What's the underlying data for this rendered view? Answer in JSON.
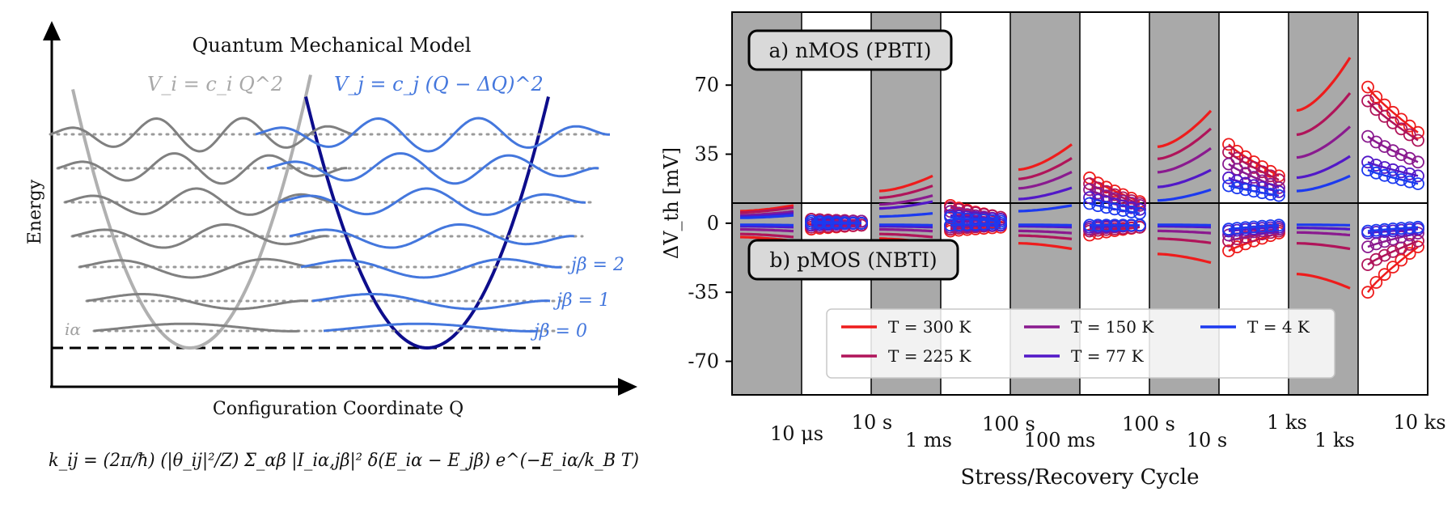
{
  "left_panel": {
    "title": "Quantum Mechanical Model",
    "y_label": "Energy",
    "x_label": "Configuration Coordinate Q",
    "potential_i": "V_i = c_i Q^2",
    "potential_j": "V_j = c_j (Q − ΔQ)^2",
    "state_label_i": "iα",
    "state_labels_j": [
      "jβ = 0",
      "jβ = 1",
      "jβ = 2"
    ],
    "rate_formula": "k_ij = (2π/ħ) (|θ_ij|²/Z) Σ_αβ |I_iα,jβ|² δ(E_iα − E_jβ) e^(−E_iα/k_B T)",
    "colors": {
      "well_i": "#b0b0b0",
      "wave_i": "#808080",
      "well_j": "#0d0d8c",
      "wave_j": "#4477dd"
    }
  },
  "chart_data": {
    "type": "line",
    "title": "",
    "xlabel": "Stress/Recovery Cycle",
    "ylabel": "ΔV_th [mV]",
    "ylim": [
      -87,
      107
    ],
    "yticks": [
      70,
      35,
      0,
      -35,
      -70
    ],
    "panel_labels": [
      "a) nMOS (PBTI)",
      "b) pMOS (NBTI)"
    ],
    "cycle_labels": [
      "10 μs",
      "10 s",
      "1 ms",
      "100 s",
      "100 ms",
      "100 s",
      "10 s",
      "1 ks",
      "1 ks",
      "10 ks"
    ],
    "phases": [
      "stress",
      "recovery",
      "stress",
      "recovery",
      "stress",
      "recovery",
      "stress",
      "recovery",
      "stress",
      "recovery"
    ],
    "legend_location": "lower-center",
    "series": [
      {
        "name": "T = 300 K",
        "color": "#ee1c1c",
        "nmos_stress_end": [
          9,
          24,
          40,
          57,
          84
        ],
        "nmos_recovery": [
          [
            2,
            1
          ],
          [
            9,
            3
          ],
          [
            23,
            11
          ],
          [
            40,
            24
          ],
          [
            69,
            46
          ]
        ],
        "pmos_stress_end": [
          -9,
          -10,
          -13,
          -20,
          -33
        ],
        "pmos_recovery": [
          [
            -3,
            -1
          ],
          [
            -4,
            -2
          ],
          [
            -6,
            -2
          ],
          [
            -14,
            -5
          ],
          [
            -35,
            -12
          ]
        ]
      },
      {
        "name": "T = 225 K",
        "color": "#b0145a",
        "nmos_stress_end": [
          8,
          19,
          33,
          48,
          66
        ],
        "nmos_recovery": [
          [
            2,
            1
          ],
          [
            8,
            3
          ],
          [
            20,
            10
          ],
          [
            36,
            22
          ],
          [
            62,
            42
          ]
        ],
        "pmos_stress_end": [
          -7,
          -7,
          -8,
          -10,
          -13
        ],
        "pmos_recovery": [
          [
            -2,
            -1
          ],
          [
            -3,
            -1
          ],
          [
            -4,
            -2
          ],
          [
            -9,
            -4
          ],
          [
            -21,
            -9
          ]
        ]
      },
      {
        "name": "T = 150 K",
        "color": "#8a1a8f",
        "nmos_stress_end": [
          6,
          14,
          26,
          38,
          49
        ],
        "nmos_recovery": [
          [
            1,
            1
          ],
          [
            6,
            2
          ],
          [
            17,
            9
          ],
          [
            30,
            18
          ],
          [
            44,
            31
          ]
        ],
        "pmos_stress_end": [
          -4,
          -4,
          -5,
          -5,
          -6
        ],
        "pmos_recovery": [
          [
            -1,
            0
          ],
          [
            -2,
            -1
          ],
          [
            -3,
            -1
          ],
          [
            -6,
            -3
          ],
          [
            -12,
            -5
          ]
        ]
      },
      {
        "name": "T = 77 K",
        "color": "#5218c8",
        "nmos_stress_end": [
          5,
          11,
          18,
          27,
          34
        ],
        "nmos_recovery": [
          [
            1,
            0
          ],
          [
            4,
            2
          ],
          [
            13,
            7
          ],
          [
            23,
            16
          ],
          [
            31,
            24
          ]
        ],
        "pmos_stress_end": [
          -2,
          -2,
          -2,
          -2,
          -3
        ],
        "pmos_recovery": [
          [
            -1,
            0
          ],
          [
            -1,
            -1
          ],
          [
            -2,
            -1
          ],
          [
            -4,
            -2
          ],
          [
            -5,
            -3
          ]
        ]
      },
      {
        "name": "T = 4 K",
        "color": "#1c3aef",
        "nmos_stress_end": [
          4,
          5,
          9,
          17,
          24
        ],
        "nmos_recovery": [
          [
            1,
            0
          ],
          [
            3,
            1
          ],
          [
            10,
            5
          ],
          [
            19,
            14
          ],
          [
            27,
            20
          ]
        ],
        "pmos_stress_end": [
          -1,
          -1,
          -1,
          -1,
          -1
        ],
        "pmos_recovery": [
          [
            0,
            0
          ],
          [
            -1,
            0
          ],
          [
            -1,
            -1
          ],
          [
            -3,
            -1
          ],
          [
            -4,
            -2
          ]
        ]
      }
    ]
  }
}
